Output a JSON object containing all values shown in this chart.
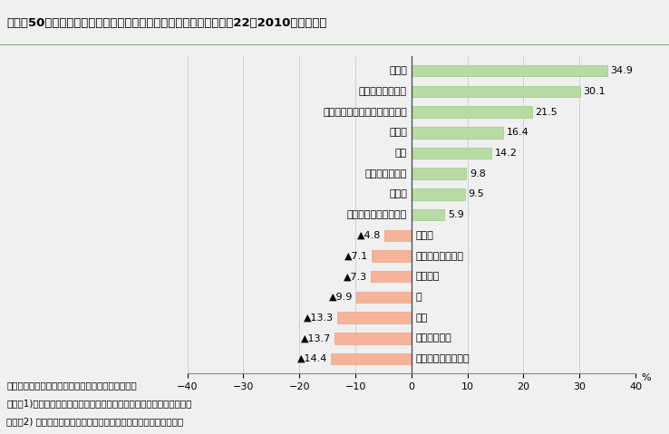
{
  "title": "図１－50　猛暑の影響で消費支出が大きく増減した食料品等（平成22（2010）年８月）",
  "categories": [
    "他のめん類（外食）",
    "すし（外食）",
    "牛肉",
    "米",
    "生鮮魚介",
    "中華そば（外食）",
    "食パン",
    "発泡酒・その他の酒等",
    "ビール",
    "乾うどん・そば",
    "飲料",
    "ゼリー",
    "アイスクリーム・シャーベット",
    "うなぎのかば焼き",
    "梅干し"
  ],
  "values": [
    -14.4,
    -13.7,
    -13.3,
    -9.9,
    -7.3,
    -7.1,
    -4.8,
    5.9,
    9.5,
    9.8,
    14.2,
    16.4,
    21.5,
    30.1,
    34.9
  ],
  "bar_color_positive": "#b8dba4",
  "bar_color_negative": "#f5b49a",
  "bar_edge_positive": "#8cc478",
  "bar_edge_negative": "#e8957a",
  "xlim": [
    -40,
    40
  ],
  "xticks": [
    -40,
    -30,
    -20,
    -10,
    0,
    10,
    20,
    30,
    40
  ],
  "xlabel": "%",
  "footnote_line1": "資料：総務省「家計調査」を基に農林水産省で作成",
  "footnote_line2": "　注：1)「他のめん類」は、うどん、日本そば、中華そば以外のめん類",
  "footnote_line3": "　　　2) 数値は全国・二人以上の世帯の実質消費支出の前年同月比",
  "title_bg_color": "#c8e6b8",
  "title_border_color": "#7ab870",
  "bg_color": "#f0f0f0",
  "plot_bg_color": "#f0f0f0"
}
